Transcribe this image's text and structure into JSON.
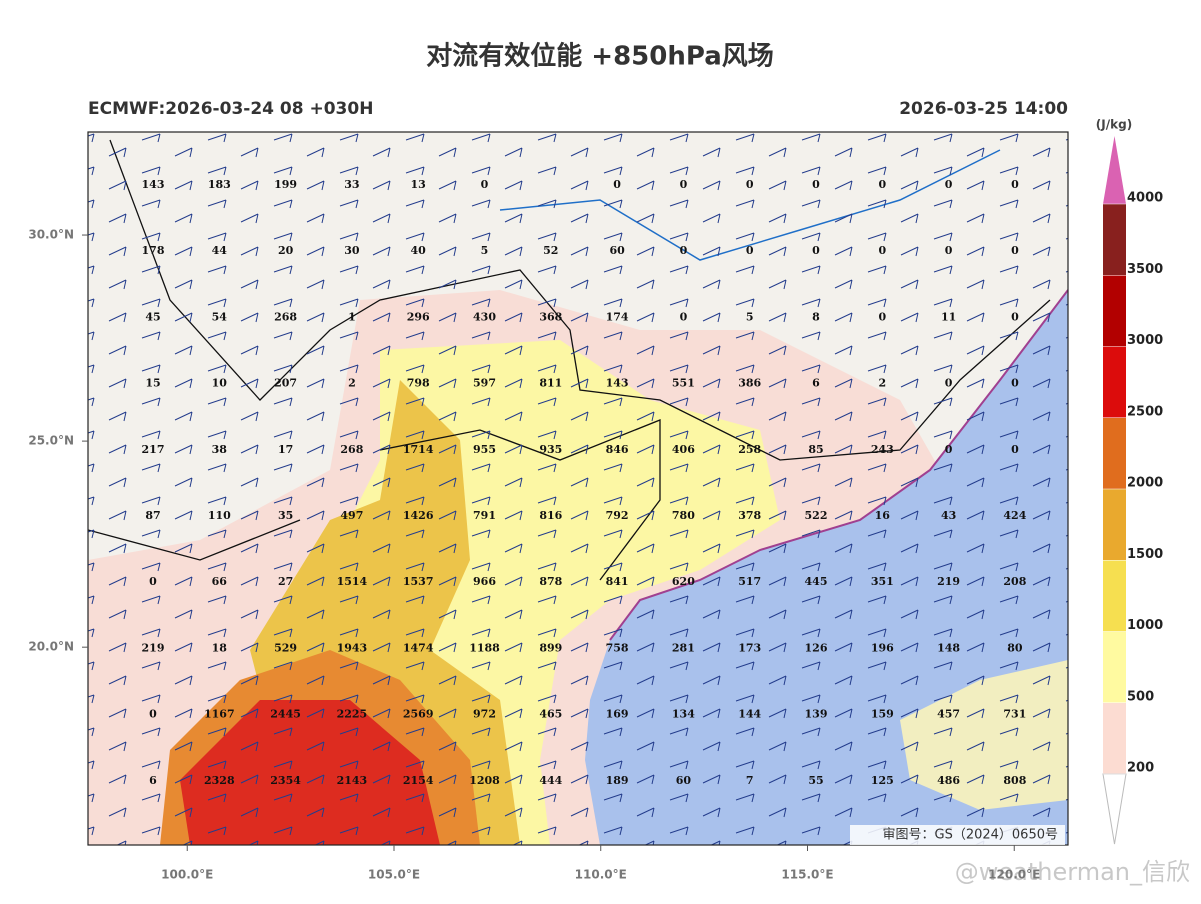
{
  "chart_data": {
    "type": "map-grid",
    "title": "对流有效位能 +850hPa风场",
    "subtitle_left": "ECMWF:2026-03-24 08 +030H",
    "subtitle_right": "2026-03-25 14:00",
    "xlim": [
      97.6,
      121.3
    ],
    "ylim": [
      15.2,
      32.5
    ],
    "xticks": [
      {
        "value": 100,
        "label": "100.0°E"
      },
      {
        "value": 105,
        "label": "105.0°E"
      },
      {
        "value": 110,
        "label": "110.0°E"
      },
      {
        "value": 115,
        "label": "115.0°E"
      },
      {
        "value": 120,
        "label": "120.0°E"
      }
    ],
    "yticks": [
      {
        "value": 30,
        "label": "30.0°N"
      },
      {
        "value": 25,
        "label": "25.0°N"
      },
      {
        "value": 20,
        "label": "20.0°N"
      }
    ],
    "grid_values": [
      [
        143,
        183,
        199,
        33,
        13,
        0,
        null,
        0,
        0,
        0,
        0,
        0,
        0,
        0
      ],
      [
        178,
        44,
        20,
        30,
        40,
        5,
        52,
        60,
        0,
        0,
        0,
        0,
        0,
        0
      ],
      [
        45,
        54,
        268,
        1,
        296,
        430,
        368,
        174,
        0,
        5,
        8,
        0,
        11,
        0
      ],
      [
        15,
        10,
        207,
        2,
        798,
        597,
        811,
        143,
        551,
        386,
        6,
        2,
        0,
        0
      ],
      [
        217,
        38,
        17,
        268,
        1714,
        955,
        935,
        846,
        406,
        258,
        85,
        243,
        0,
        0
      ],
      [
        87,
        110,
        35,
        497,
        1426,
        791,
        816,
        792,
        780,
        378,
        522,
        16,
        43,
        424
      ],
      [
        0,
        66,
        27,
        1514,
        1537,
        966,
        878,
        841,
        620,
        517,
        445,
        351,
        219,
        208
      ],
      [
        219,
        18,
        529,
        1943,
        1474,
        1188,
        899,
        758,
        281,
        173,
        126,
        196,
        148,
        80
      ],
      [
        0,
        1167,
        2445,
        2225,
        2569,
        972,
        465,
        169,
        134,
        144,
        139,
        159,
        457,
        731
      ],
      [
        6,
        2328,
        2354,
        2143,
        2154,
        1208,
        444,
        189,
        60,
        7,
        55,
        125,
        486,
        808
      ]
    ],
    "colorbar": {
      "unit": "(J/kg)",
      "levels": [
        200,
        500,
        1000,
        1500,
        2000,
        2500,
        3000,
        3500,
        4000
      ],
      "colors": [
        "#fcdcd2",
        "#fffaa0",
        "#f6df50",
        "#e9a92e",
        "#e06d1e",
        "#dc0c0c",
        "#b20000",
        "#88201e"
      ],
      "over_color": "#da62b2",
      "under_color": "#ffffff"
    },
    "stamp": "审图号：GS（2024）0650号",
    "watermark": "@weatherman_信欣"
  }
}
